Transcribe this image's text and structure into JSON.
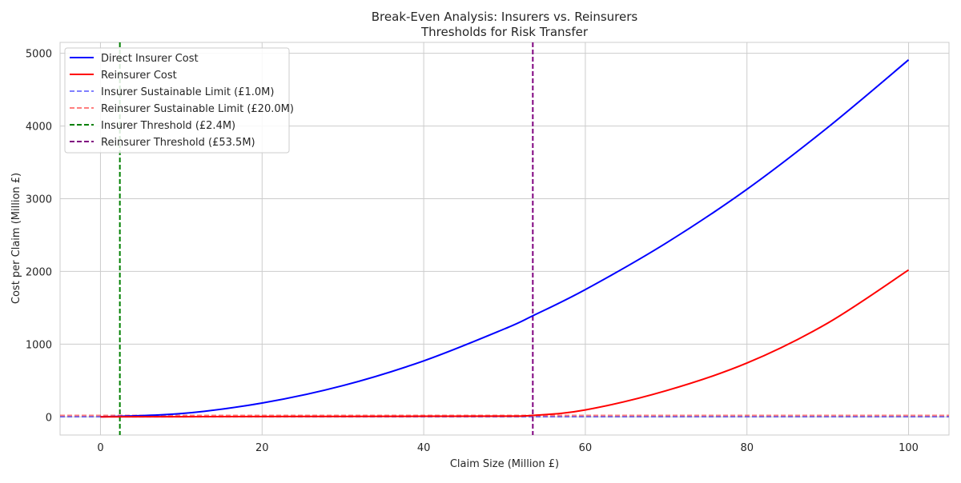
{
  "chart_data": {
    "type": "line",
    "title": "Break-Even Analysis: Insurers vs. Reinsurers",
    "subtitle": "Thresholds for Risk Transfer",
    "xlabel": "Claim Size (Million £)",
    "ylabel": "Cost per Claim (Million £)",
    "xlim": [
      -5,
      105
    ],
    "ylim": [
      -250,
      5150
    ],
    "x_ticks": [
      0,
      20,
      40,
      60,
      80,
      100
    ],
    "y_ticks": [
      0,
      1000,
      2000,
      3000,
      4000,
      5000
    ],
    "grid": true,
    "legend_position": "top-left",
    "series": [
      {
        "name": "Direct Insurer Cost",
        "color": "#0000ff",
        "style": "solid",
        "x": [
          0,
          10,
          20,
          30,
          40,
          50,
          53.5,
          60,
          70,
          80,
          90,
          100
        ],
        "y": [
          0,
          45,
          190,
          430,
          770,
          1210,
          1390,
          1750,
          2390,
          3130,
          3980,
          4910
        ]
      },
      {
        "name": "Reinsurer Cost",
        "color": "#ff0000",
        "style": "solid",
        "x": [
          0,
          10,
          20,
          30,
          40,
          50,
          53.5,
          60,
          70,
          80,
          90,
          100
        ],
        "y": [
          0,
          2,
          4,
          6,
          8,
          10,
          20,
          95,
          360,
          740,
          1290,
          2020
        ]
      }
    ],
    "reference_lines": [
      {
        "name": "Insurer Sustainable Limit (£1.0M)",
        "orientation": "horizontal",
        "value": 1.0,
        "color": "#0000ff",
        "opacity": 0.5,
        "style": "dashed"
      },
      {
        "name": "Reinsurer Sustainable Limit (£20.0M)",
        "orientation": "horizontal",
        "value": 20.0,
        "color": "#ff0000",
        "opacity": 0.5,
        "style": "dashed"
      },
      {
        "name": "Insurer Threshold (£2.4M)",
        "orientation": "vertical",
        "value": 2.4,
        "color": "#008000",
        "opacity": 1,
        "style": "dashed"
      },
      {
        "name": "Reinsurer Threshold (£53.5M)",
        "orientation": "vertical",
        "value": 53.5,
        "color": "#800080",
        "opacity": 1,
        "style": "dashed"
      }
    ]
  }
}
